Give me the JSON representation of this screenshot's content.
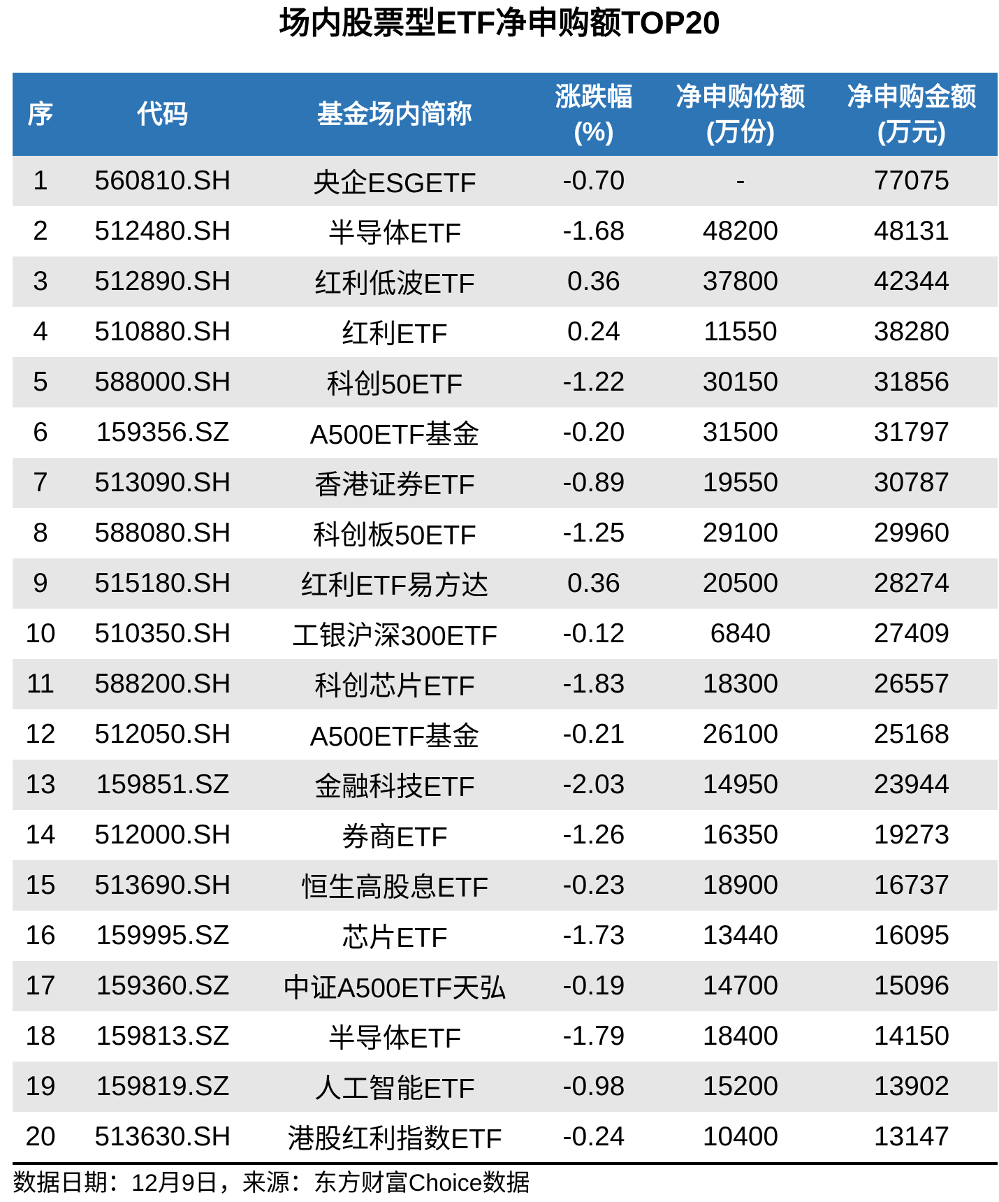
{
  "chart_data": {
    "type": "table",
    "title": "场内股票型ETF净申购额TOP20",
    "columns": [
      {
        "key": "rank",
        "label": "序",
        "unit": ""
      },
      {
        "key": "code",
        "label": "代码",
        "unit": ""
      },
      {
        "key": "name",
        "label": "基金场内简称",
        "unit": ""
      },
      {
        "key": "change",
        "label": "涨跌幅",
        "unit": "(%)"
      },
      {
        "key": "shares",
        "label": "净申购份额",
        "unit": "(万份)"
      },
      {
        "key": "amount",
        "label": "净申购金额",
        "unit": "(万元)"
      }
    ],
    "rows": [
      [
        "1",
        "560810.SH",
        "央企ESGETF",
        "-0.70",
        "-",
        "77075"
      ],
      [
        "2",
        "512480.SH",
        "半导体ETF",
        "-1.68",
        "48200",
        "48131"
      ],
      [
        "3",
        "512890.SH",
        "红利低波ETF",
        "0.36",
        "37800",
        "42344"
      ],
      [
        "4",
        "510880.SH",
        "红利ETF",
        "0.24",
        "11550",
        "38280"
      ],
      [
        "5",
        "588000.SH",
        "科创50ETF",
        "-1.22",
        "30150",
        "31856"
      ],
      [
        "6",
        "159356.SZ",
        "A500ETF基金",
        "-0.20",
        "31500",
        "31797"
      ],
      [
        "7",
        "513090.SH",
        "香港证券ETF",
        "-0.89",
        "19550",
        "30787"
      ],
      [
        "8",
        "588080.SH",
        "科创板50ETF",
        "-1.25",
        "29100",
        "29960"
      ],
      [
        "9",
        "515180.SH",
        "红利ETF易方达",
        "0.36",
        "20500",
        "28274"
      ],
      [
        "10",
        "510350.SH",
        "工银沪深300ETF",
        "-0.12",
        "6840",
        "27409"
      ],
      [
        "11",
        "588200.SH",
        "科创芯片ETF",
        "-1.83",
        "18300",
        "26557"
      ],
      [
        "12",
        "512050.SH",
        "A500ETF基金",
        "-0.21",
        "26100",
        "25168"
      ],
      [
        "13",
        "159851.SZ",
        "金融科技ETF",
        "-2.03",
        "14950",
        "23944"
      ],
      [
        "14",
        "512000.SH",
        "券商ETF",
        "-1.26",
        "16350",
        "19273"
      ],
      [
        "15",
        "513690.SH",
        "恒生高股息ETF",
        "-0.23",
        "18900",
        "16737"
      ],
      [
        "16",
        "159995.SZ",
        "芯片ETF",
        "-1.73",
        "13440",
        "16095"
      ],
      [
        "17",
        "159360.SZ",
        "中证A500ETF天弘",
        "-0.19",
        "14700",
        "15096"
      ],
      [
        "18",
        "159813.SZ",
        "半导体ETF",
        "-1.79",
        "18400",
        "14150"
      ],
      [
        "19",
        "159819.SZ",
        "人工智能ETF",
        "-0.98",
        "15200",
        "13902"
      ],
      [
        "20",
        "513630.SH",
        "港股红利指数ETF",
        "-0.24",
        "10400",
        "13147"
      ]
    ],
    "footnote": "数据日期：12月9日，来源：东方财富Choice数据",
    "layout_hints": {
      "grid": "off",
      "row_striping": "odd-gray"
    }
  },
  "colors": {
    "header_bg": "#2E75B6",
    "header_text": "#FFFFFF",
    "stripe_bg": "#E6E6E6",
    "row_bg": "#FFFFFF",
    "text": "#000000",
    "footer_rule": "#000000"
  }
}
